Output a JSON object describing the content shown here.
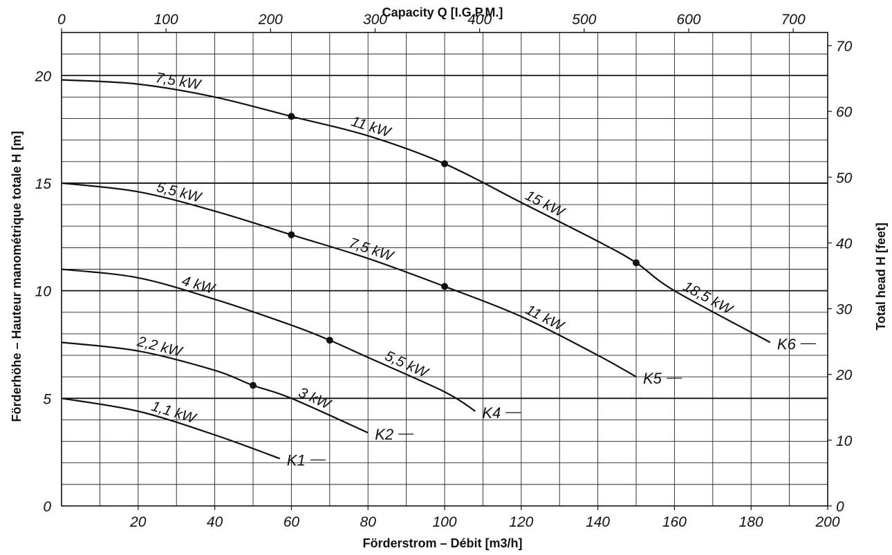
{
  "chart_data": {
    "type": "line",
    "title": "",
    "xlabel": "Förderstrom – Débit [m3/h]",
    "ylabel": "Förderhöhe – Hauteur manométrique totale H [m]",
    "x2label": "Capacity Q [I.G.P.M.]",
    "y2label": "Total head H [feet]",
    "xlim": [
      0,
      200
    ],
    "ylim": [
      0,
      22
    ],
    "x2lim": [
      0,
      733
    ],
    "y2lim": [
      0,
      72
    ],
    "x_ticks": [
      20,
      40,
      60,
      80,
      100,
      120,
      140,
      160,
      180,
      200
    ],
    "y_ticks": [
      0,
      5,
      10,
      15,
      20
    ],
    "x2_ticks": [
      0,
      100,
      200,
      300,
      400,
      500,
      600,
      700
    ],
    "y2_ticks": [
      0,
      10,
      20,
      30,
      40,
      50,
      60,
      70
    ],
    "grid": true,
    "series": [
      {
        "name": "K1",
        "x": [
          0,
          20,
          40,
          57
        ],
        "y": [
          5.0,
          4.4,
          3.3,
          2.2
        ],
        "segments": [
          {
            "label": "1,1 kW",
            "x_from": 0,
            "x_to": 57
          }
        ],
        "points": []
      },
      {
        "name": "K2",
        "x": [
          0,
          20,
          40,
          50,
          60,
          80
        ],
        "y": [
          7.6,
          7.2,
          6.3,
          5.6,
          5.0,
          3.4
        ],
        "segments": [
          {
            "label": "2,2 kW",
            "x_from": 0,
            "x_to": 50
          },
          {
            "label": "3 kW",
            "x_from": 50,
            "x_to": 80
          }
        ],
        "points": [
          {
            "x": 50,
            "y": 5.6
          }
        ]
      },
      {
        "name": "K4",
        "x": [
          0,
          20,
          40,
          60,
          70,
          80,
          100,
          108
        ],
        "y": [
          11.0,
          10.6,
          9.6,
          8.4,
          7.7,
          6.9,
          5.3,
          4.4
        ],
        "segments": [
          {
            "label": "4 kW",
            "x_from": 0,
            "x_to": 70
          },
          {
            "label": "5,5 kW",
            "x_from": 70,
            "x_to": 108
          }
        ],
        "points": [
          {
            "x": 70,
            "y": 7.7
          }
        ]
      },
      {
        "name": "K5",
        "x": [
          0,
          20,
          40,
          60,
          80,
          100,
          120,
          140,
          150
        ],
        "y": [
          15.0,
          14.6,
          13.7,
          12.6,
          11.5,
          10.2,
          8.8,
          7.0,
          6.0
        ],
        "segments": [
          {
            "label": "5,5 kW",
            "x_from": 0,
            "x_to": 60
          },
          {
            "label": "7,5 kW",
            "x_from": 60,
            "x_to": 100
          },
          {
            "label": "11 kW",
            "x_from": 100,
            "x_to": 150
          }
        ],
        "points": [
          {
            "x": 60,
            "y": 12.6
          },
          {
            "x": 100,
            "y": 10.2
          }
        ]
      },
      {
        "name": "K6",
        "x": [
          0,
          20,
          40,
          60,
          80,
          100,
          120,
          140,
          150,
          160,
          185
        ],
        "y": [
          19.8,
          19.6,
          19.0,
          18.1,
          17.2,
          15.9,
          14.1,
          12.3,
          11.3,
          10.0,
          7.6
        ],
        "segments": [
          {
            "label": "7,5 kW",
            "x_from": 0,
            "x_to": 60
          },
          {
            "label": "11 kW",
            "x_from": 60,
            "x_to": 100
          },
          {
            "label": "15 kW",
            "x_from": 100,
            "x_to": 150
          },
          {
            "label": "18,5 kW",
            "x_from": 150,
            "x_to": 185
          }
        ],
        "points": [
          {
            "x": 60,
            "y": 18.1
          },
          {
            "x": 100,
            "y": 15.9
          },
          {
            "x": 150,
            "y": 11.3
          }
        ]
      }
    ]
  }
}
